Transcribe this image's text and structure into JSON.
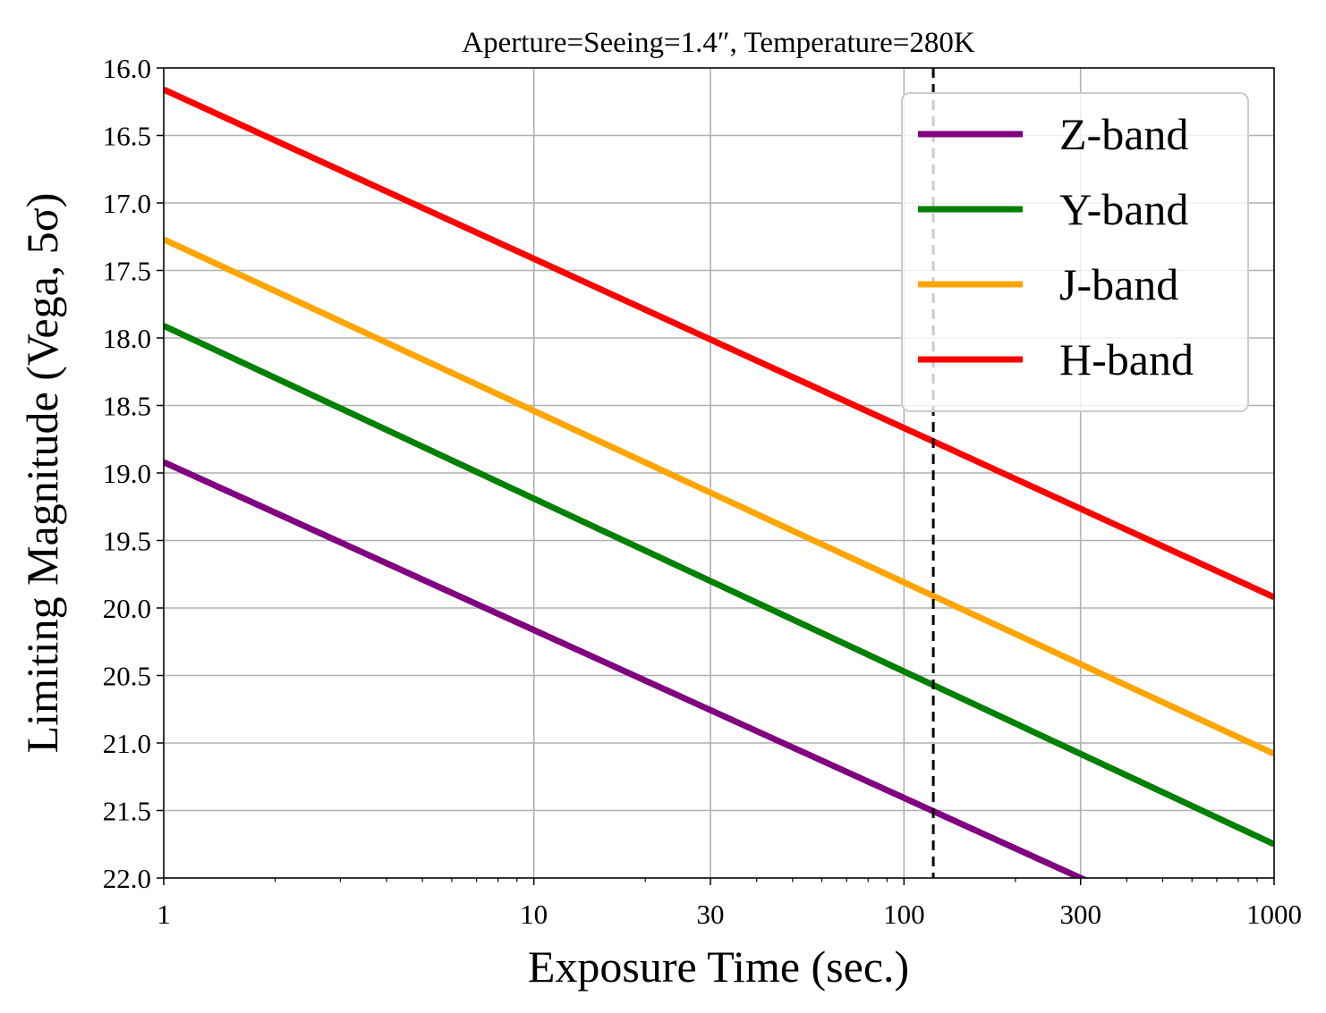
{
  "chart_data": {
    "type": "line",
    "title": "Aperture=Seeing=1.4″, Temperature=280K",
    "xlabel": "Exposure Time (sec.)",
    "ylabel": "Limiting Magnitude (Vega, 5σ)",
    "xscale": "log",
    "xlim": [
      1,
      1000
    ],
    "ylim": [
      22.0,
      16.0
    ],
    "y_inverted": true,
    "grid": true,
    "legend_position": "top-right",
    "x_ticks": [
      1,
      10,
      30,
      100,
      300,
      1000
    ],
    "x_tick_labels": [
      "1",
      "10",
      "30",
      "100",
      "300",
      "1000"
    ],
    "y_ticks": [
      16.0,
      16.5,
      17.0,
      17.5,
      18.0,
      18.5,
      19.0,
      19.5,
      20.0,
      20.5,
      21.0,
      21.5,
      22.0
    ],
    "y_tick_labels": [
      "16.0",
      "16.5",
      "17.0",
      "17.5",
      "18.0",
      "18.5",
      "19.0",
      "19.5",
      "20.0",
      "20.5",
      "21.0",
      "21.5",
      "22.0"
    ],
    "vline": {
      "x": 120,
      "style": "dashed",
      "color": "#000000"
    },
    "series": [
      {
        "name": "Z-band",
        "color": "#800080",
        "x": [
          1,
          1000
        ],
        "y": [
          18.92,
          22.65
        ]
      },
      {
        "name": "Y-band",
        "color": "#008000",
        "x": [
          1,
          1000
        ],
        "y": [
          17.91,
          21.75
        ]
      },
      {
        "name": "J-band",
        "color": "#FFA500",
        "x": [
          1,
          1000
        ],
        "y": [
          17.27,
          21.08
        ]
      },
      {
        "name": "H-band",
        "color": "#FF0000",
        "x": [
          1,
          1000
        ],
        "y": [
          16.16,
          19.92
        ]
      }
    ]
  }
}
